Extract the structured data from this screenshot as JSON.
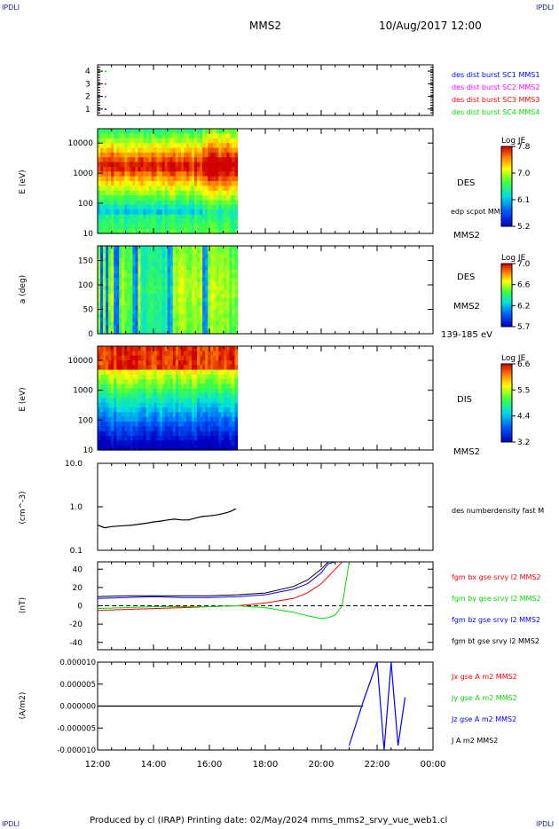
{
  "corners": {
    "tl": "IPDLI",
    "tr": "IPDLI",
    "bl": "IPDLI",
    "br": "IPDLI"
  },
  "header": {
    "spacecraft": "MMS2",
    "date": "10/Aug/2017 12:00"
  },
  "footer": "Produced by cl (IRAP)   Printing date: 02/May/2024   mms_mms2_srvy_vue_web1.cl",
  "colors": {
    "red": "#ff0000",
    "green": "#00dd00",
    "blue": "#0000ff",
    "magenta": "#ff00ff",
    "black": "#000000"
  },
  "chart_data": [
    {
      "type": "scatter",
      "panel": "burst",
      "yticks": [
        "1",
        "2",
        "3",
        "4"
      ],
      "ylim": [
        0.5,
        4.5
      ],
      "legend": [
        {
          "label": "des dist burst SC1 MMS1",
          "color": "#0000ff"
        },
        {
          "label": "des dist burst SC2 MMS2",
          "color": "#ff00ff"
        },
        {
          "label": "des dist burst SC3 MMS3",
          "color": "#ff0000"
        },
        {
          "label": "des dist burst SC4 MMS4",
          "color": "#00dd00"
        }
      ],
      "points": [
        {
          "x": "12:15",
          "y": 4,
          "color": "#00dd00"
        },
        {
          "x": "12:15",
          "y": 3,
          "color": "#ff0000"
        },
        {
          "x": "12:15",
          "y": 2,
          "color": "#ff00ff"
        },
        {
          "x": "12:15",
          "y": 1,
          "color": "#0000ff"
        }
      ]
    },
    {
      "type": "heatmap",
      "panel": "des-energy",
      "ylabel": "E (eV)",
      "yscale": "log",
      "yticks": [
        "10",
        "100",
        "1000",
        "10000"
      ],
      "ylim": [
        10,
        30000
      ],
      "x_range": [
        "12:00",
        "17:00"
      ],
      "colorbar": {
        "title": "Log JE",
        "ticks": [
          "7.8",
          "7.0",
          "6.1",
          "5.2"
        ],
        "range": [
          5.2,
          7.8
        ]
      },
      "labels": [
        "DES",
        "edp scpot MMS2",
        "MMS2"
      ]
    },
    {
      "type": "heatmap",
      "panel": "des-pitch",
      "ylabel": "a (deg)",
      "yticks": [
        "0",
        "50",
        "100",
        "150"
      ],
      "ylim": [
        0,
        180
      ],
      "x_range": [
        "12:00",
        "17:00"
      ],
      "colorbar": {
        "title": "Log JE",
        "ticks": [
          "7.0",
          "6.6",
          "6.2",
          "5.7"
        ],
        "range": [
          5.7,
          7.0
        ]
      },
      "labels": [
        "DES",
        "MMS2",
        "139-185 eV"
      ]
    },
    {
      "type": "heatmap",
      "panel": "dis-energy",
      "ylabel": "E (eV)",
      "yscale": "log",
      "yticks": [
        "10",
        "100",
        "1000",
        "10000"
      ],
      "ylim": [
        10,
        30000
      ],
      "x_range": [
        "12:00",
        "17:00"
      ],
      "colorbar": {
        "title": "Log JE",
        "ticks": [
          "6.6",
          "5.5",
          "4.4",
          "3.2"
        ],
        "range": [
          3.2,
          6.6
        ]
      },
      "labels": [
        "DIS",
        "MMS2"
      ]
    },
    {
      "type": "line",
      "panel": "density",
      "ylabel": "(cm^-3)",
      "yscale": "log",
      "yticks": [
        "0.1",
        "1.0",
        "10.0"
      ],
      "ylim": [
        0.1,
        10
      ],
      "legend": [
        {
          "label": "des numberdensity fast M",
          "color": "#000000"
        }
      ],
      "x": [
        12.0,
        12.25,
        12.5,
        12.75,
        13.0,
        13.25,
        13.5,
        13.75,
        14.0,
        14.25,
        14.5,
        14.75,
        15.0,
        15.25,
        15.5,
        15.75,
        16.0,
        16.25,
        16.5,
        16.75,
        16.95
      ],
      "y": [
        0.38,
        0.33,
        0.35,
        0.36,
        0.37,
        0.38,
        0.4,
        0.42,
        0.45,
        0.47,
        0.5,
        0.52,
        0.5,
        0.5,
        0.55,
        0.6,
        0.62,
        0.65,
        0.7,
        0.78,
        0.9
      ]
    },
    {
      "type": "line",
      "panel": "magnetic-field",
      "ylabel": "(nT)",
      "yticks": [
        "-40",
        "-20",
        "0",
        "20",
        "40"
      ],
      "ylim": [
        -48,
        48
      ],
      "legend": [
        {
          "label": "fgm bx gse srvy l2 MMS2",
          "color": "#ff0000"
        },
        {
          "label": "fgm by gse srvy l2 MMS2",
          "color": "#00dd00"
        },
        {
          "label": "fgm bz gse srvy l2 MMS2",
          "color": "#0000ff"
        },
        {
          "label": "fgm bt gse srvy l2 MMS2",
          "color": "#000000"
        }
      ],
      "x": [
        12.0,
        13.0,
        14.0,
        15.0,
        16.0,
        17.0,
        18.0,
        19.0,
        19.5,
        20.0,
        20.25,
        20.5,
        20.75,
        21.0
      ],
      "series": [
        {
          "name": "fgm bx gse srvy l2 MMS2",
          "values": [
            -5,
            -4,
            -3,
            -2,
            -1,
            0,
            3,
            8,
            14,
            24,
            32,
            40,
            48,
            52
          ]
        },
        {
          "name": "fgm by gse srvy l2 MMS2",
          "values": [
            -3,
            -2,
            -1,
            -1,
            -1,
            0,
            -2,
            -7,
            -11,
            -14,
            -13,
            -10,
            0,
            48
          ]
        },
        {
          "name": "fgm bz gse srvy l2 MMS2",
          "values": [
            8,
            9,
            10,
            9,
            9,
            10,
            12,
            18,
            24,
            36,
            46,
            52,
            56,
            56
          ]
        },
        {
          "name": "fgm bt gse srvy l2 MMS2",
          "values": [
            10,
            11,
            11,
            11,
            11,
            12,
            14,
            21,
            28,
            40,
            48,
            55,
            58,
            58
          ]
        }
      ]
    },
    {
      "type": "line",
      "panel": "current-density",
      "ylabel": "(A/m2)",
      "yticks": [
        "-0.000010",
        "-0.000005",
        "0.000000",
        "0.000005",
        "0.000010"
      ],
      "ylim": [
        -1e-05,
        1e-05
      ],
      "legend": [
        {
          "label": "Jx gse A m2 MMS2",
          "color": "#ff0000"
        },
        {
          "label": "Jy gse A m2 MMS2",
          "color": "#00dd00"
        },
        {
          "label": "Jz gse A m2 MMS2",
          "color": "#0000ff"
        },
        {
          "label": "J A m2 MMS2",
          "color": "#000000"
        }
      ],
      "x": [
        "21:00",
        "21:30",
        "22:00",
        "22:15",
        "22:30",
        "22:45",
        "23:00"
      ],
      "series": [
        {
          "name": "Jz gse A m2 MMS2",
          "values": [
            -9e-06,
            1e-06,
            1e-05,
            -1e-05,
            1e-05,
            -9e-06,
            2e-06
          ]
        }
      ]
    }
  ],
  "time_axis": {
    "ticks": [
      "12:00",
      "14:00",
      "16:00",
      "18:00",
      "20:00",
      "22:00",
      "00:00"
    ],
    "range_hours": [
      12,
      24
    ]
  }
}
